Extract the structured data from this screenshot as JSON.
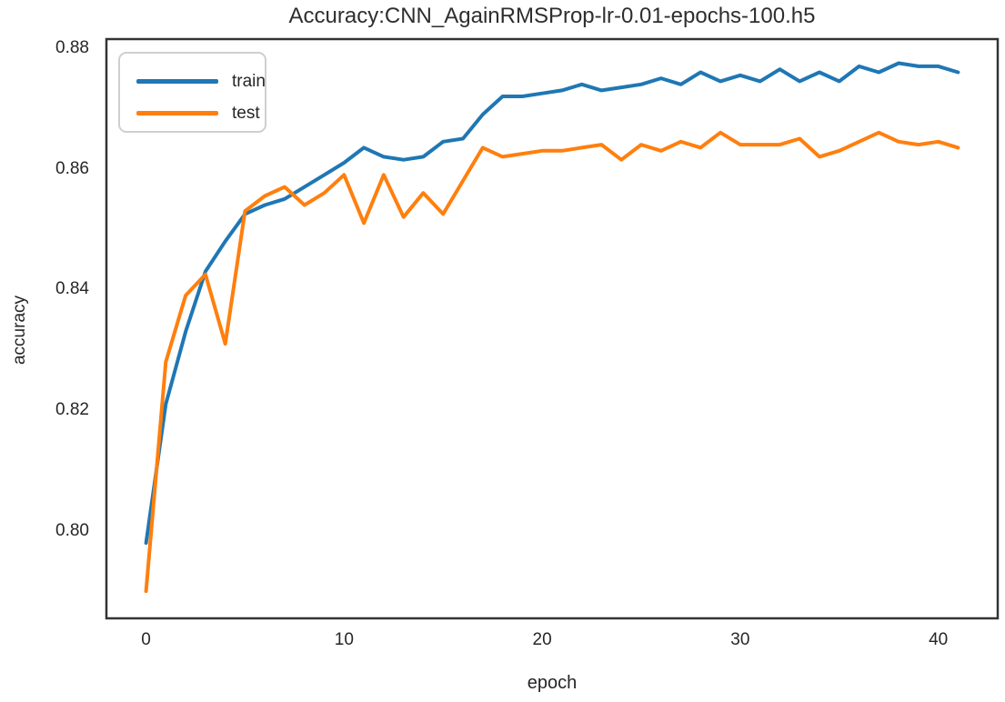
{
  "figure": {
    "title": "Accuracy:CNN_AgainRMSProp-lr-0.01-epochs-100.h5",
    "xlabel": "epoch",
    "ylabel": "accuracy"
  },
  "chart_data": {
    "type": "line",
    "title": "Accuracy:CNN_AgainRMSProp-lr-0.01-epochs-100.h5",
    "xlabel": "epoch",
    "ylabel": "accuracy",
    "grid": false,
    "legend_position": "upper left",
    "xlim": [
      -2,
      43
    ],
    "ylim": [
      0.7855,
      0.8815
    ],
    "x_ticks": [
      0,
      10,
      20,
      30,
      40
    ],
    "x_tick_labels": [
      "0",
      "10",
      "20",
      "30",
      "40"
    ],
    "y_ticks": [
      0.8,
      0.82,
      0.84,
      0.86,
      0.88
    ],
    "y_tick_labels": [
      "0.80",
      "0.82",
      "0.84",
      "0.86",
      "0.88"
    ],
    "x": [
      0,
      1,
      2,
      3,
      4,
      5,
      6,
      7,
      8,
      9,
      10,
      11,
      12,
      13,
      14,
      15,
      16,
      17,
      18,
      19,
      20,
      21,
      22,
      23,
      24,
      25,
      26,
      27,
      28,
      29,
      30,
      31,
      32,
      33,
      34,
      35,
      36,
      37,
      38,
      39,
      40,
      41
    ],
    "series": [
      {
        "name": "train",
        "color": "#1f77b4",
        "values": [
          0.798,
          0.821,
          0.833,
          0.843,
          0.848,
          0.8525,
          0.854,
          0.855,
          0.857,
          0.859,
          0.861,
          0.8635,
          0.862,
          0.8615,
          0.862,
          0.8645,
          0.865,
          0.869,
          0.872,
          0.872,
          0.8725,
          0.873,
          0.874,
          0.873,
          0.8735,
          0.874,
          0.875,
          0.874,
          0.876,
          0.8745,
          0.8755,
          0.8745,
          0.8765,
          0.8745,
          0.876,
          0.8745,
          0.877,
          0.876,
          0.8775,
          0.877,
          0.877,
          0.876
        ]
      },
      {
        "name": "test",
        "color": "#ff7f0e",
        "values": [
          0.79,
          0.828,
          0.839,
          0.8425,
          0.831,
          0.853,
          0.8555,
          0.857,
          0.854,
          0.856,
          0.859,
          0.851,
          0.859,
          0.852,
          0.856,
          0.8525,
          0.858,
          0.8635,
          0.862,
          0.8625,
          0.863,
          0.863,
          0.8635,
          0.864,
          0.8615,
          0.864,
          0.863,
          0.8645,
          0.8635,
          0.866,
          0.864,
          0.864,
          0.864,
          0.865,
          0.862,
          0.863,
          0.8645,
          0.866,
          0.8645,
          0.864,
          0.8645,
          0.8635
        ]
      }
    ]
  }
}
